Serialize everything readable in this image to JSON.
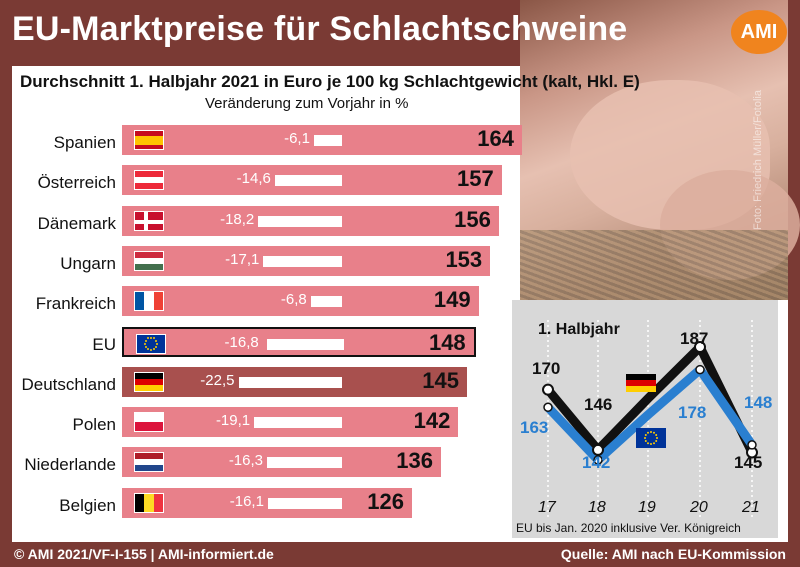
{
  "header": {
    "title": "EU-Marktpreise für Schlachtschweine",
    "logo_text": "AMI"
  },
  "subtitle": "Durchschnitt 1. Halbjahr 2021 in Euro je 100 kg Schlachtgewicht (kalt, Hkl. E)",
  "change_label": "Veränderung zum Vorjahr in %",
  "photo_credit": "Foto: Friedrich Müller/Fotolia",
  "footer": {
    "left": "© AMI 2021/VF-I-155 | AMI-informiert.de",
    "right": "Quelle: AMI nach EU-Kommission"
  },
  "colors": {
    "bar": "#e8808a",
    "bar_highlight": "#a8504e",
    "background": "#7a3a34",
    "line_germany": "#111111",
    "line_eu": "#2a7fd0"
  },
  "chart_data": [
    {
      "type": "bar",
      "orientation": "horizontal",
      "title": "Durchschnitt 1. Halbjahr 2021 in Euro je 100 kg Schlachtgewicht (kalt, Hkl. E)",
      "categories": [
        "Spanien",
        "Österreich",
        "Dänemark",
        "Ungarn",
        "Frankreich",
        "EU",
        "Deutschland",
        "Polen",
        "Niederlande",
        "Belgien"
      ],
      "values": [
        164,
        157,
        156,
        153,
        149,
        148,
        145,
        142,
        136,
        126
      ],
      "change_labels": [
        "-6,1",
        "-14,6",
        "-18,2",
        "-17,1",
        "-6,8",
        "-16,8",
        "-22,5",
        "-19,1",
        "-16,3",
        "-16,1"
      ],
      "change_values": [
        -6.1,
        -14.6,
        -18.2,
        -17.1,
        -6.8,
        -16.8,
        -22.5,
        -19.1,
        -16.3,
        -16.1
      ],
      "flags": [
        "spain-flag",
        "austria-flag",
        "denmark-flag",
        "hungary-flag",
        "france-flag",
        "eu-flag",
        "germany-flag",
        "poland-flag",
        "netherlands-flag",
        "belgium-flag"
      ],
      "highlight": [
        "EU",
        "Deutschland"
      ]
    },
    {
      "type": "line",
      "title": "1. Halbjahr",
      "x": [
        "17",
        "18",
        "19",
        "20",
        "21"
      ],
      "series": [
        {
          "name": "Deutschland",
          "values": [
            170,
            146,
            null,
            187,
            145
          ]
        },
        {
          "name": "EU",
          "values": [
            163,
            142,
            null,
            178,
            148
          ]
        }
      ],
      "note": "EU bis Jan. 2020 inklusive Ver. Königreich"
    }
  ]
}
